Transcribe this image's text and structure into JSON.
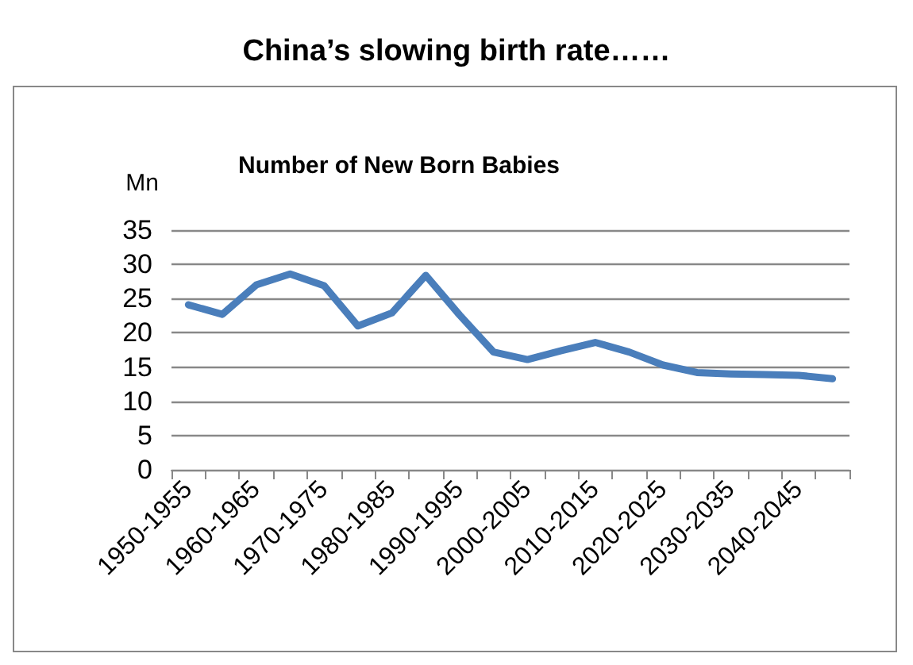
{
  "chart_data": {
    "type": "line",
    "title": "China’s slowing birth rate……",
    "subtitle": "Number of New Born Babies",
    "ylabel": "Mn",
    "categories": [
      "1950-1955",
      null,
      "1960-1965",
      null,
      "1970-1975",
      null,
      "1980-1985",
      null,
      "1990-1995",
      null,
      "2000-2005",
      null,
      "2010-2015",
      null,
      "2020-2025",
      null,
      "2030-2035",
      null,
      "2040-2045",
      null
    ],
    "series": [
      {
        "color": "#4a7ebb",
        "values": [
          24.1,
          22.7,
          27.0,
          28.6,
          26.9,
          21.0,
          22.9,
          28.4,
          22.6,
          17.2,
          16.1,
          17.4,
          18.6,
          17.2,
          15.3,
          14.2,
          14.0,
          13.9,
          13.8,
          13.3
        ]
      }
    ],
    "ylim": [
      0,
      35
    ],
    "yticks": [
      0,
      5,
      10,
      15,
      20,
      25,
      30,
      35
    ],
    "grid": "y",
    "marker": "none",
    "line_style": "solid"
  }
}
